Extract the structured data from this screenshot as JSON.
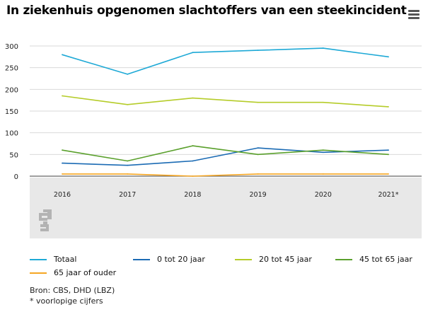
{
  "page": {
    "title": "In ziekenhuis opgenomen slachtoffers van een steekincident",
    "menu_icon": "hamburger-menu-icon",
    "logo_icon": "cbs-logo-icon"
  },
  "chart_data": {
    "type": "line",
    "title": "In ziekenhuis opgenomen slachtoffers van een steekincident",
    "categories": [
      "2016",
      "2017",
      "2018",
      "2019",
      "2020",
      "2021*"
    ],
    "ylim": [
      0,
      300
    ],
    "yticks": [
      "0",
      "50",
      "100",
      "150",
      "200",
      "250",
      "300"
    ],
    "grid": true,
    "legend_position": "bottom",
    "series": [
      {
        "name": "Totaal",
        "color": "#1ea9d6",
        "values": [
          280,
          235,
          285,
          290,
          295,
          275
        ]
      },
      {
        "name": "0 tot 20 jaar",
        "color": "#1b6bb4",
        "values": [
          30,
          25,
          35,
          65,
          55,
          60
        ]
      },
      {
        "name": "20 tot 45 jaar",
        "color": "#b5cc29",
        "values": [
          185,
          165,
          180,
          170,
          170,
          160
        ]
      },
      {
        "name": "45 tot 65 jaar",
        "color": "#5aa02c",
        "values": [
          60,
          35,
          70,
          50,
          60,
          50
        ]
      },
      {
        "name": "65 jaar of ouder",
        "color": "#f5a623",
        "values": [
          5,
          5,
          0,
          5,
          5,
          5
        ]
      }
    ]
  },
  "footer": {
    "source": "Bron: CBS, DHD (LBZ)",
    "note": "* voorlopige cijfers"
  }
}
